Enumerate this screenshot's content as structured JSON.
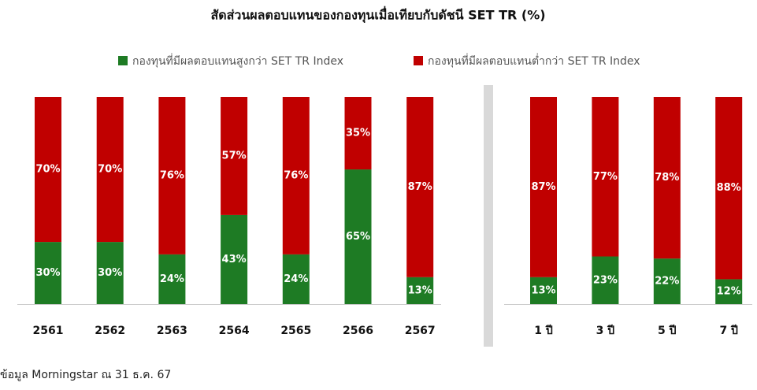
{
  "chart_data": {
    "type": "stacked_bar",
    "title": "สัดส่วนผลตอบแทนของกองทุนเมื่อเทียบกับดัชนี SET TR (%)",
    "categories": [
      "2561",
      "2562",
      "2563",
      "2564",
      "2565",
      "2566",
      "2567",
      "1 ปี",
      "3 ปี",
      "5 ปี",
      "7 ปี"
    ],
    "series": [
      {
        "name": "กองทุนที่มีผลตอบแทนสูงกว่า SET TR Index",
        "color": "#1e7b24",
        "values": [
          30,
          30,
          24,
          43,
          24,
          65,
          13,
          13,
          23,
          22,
          12
        ],
        "value_labels": [
          "30%",
          "30%",
          "24%",
          "43%",
          "24%",
          "65%",
          "13%",
          "13%",
          "23%",
          "22%",
          "12%"
        ]
      },
      {
        "name": "กองทุนที่มีผลตอบแทนต่ำกว่า SET TR Index",
        "color": "#c00000",
        "values": [
          70,
          70,
          76,
          57,
          76,
          35,
          87,
          87,
          77,
          78,
          88
        ],
        "value_labels": [
          "70%",
          "70%",
          "76%",
          "57%",
          "76%",
          "35%",
          "87%",
          "87%",
          "77%",
          "78%",
          "88%"
        ]
      }
    ],
    "ylim": [
      0,
      100
    ],
    "legend": "top",
    "source": "ข้อมูล Morningstar ณ 31 ธ.ค. 67"
  }
}
